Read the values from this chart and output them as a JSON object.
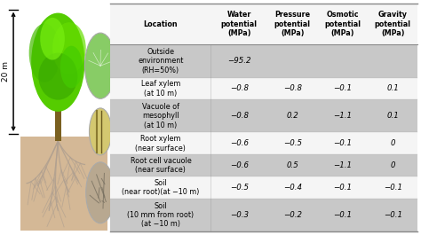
{
  "col_headers": [
    "Location",
    "Water\npotential\n(MPa)",
    "Pressure\npotential\n(MPa)",
    "Osmotic\npotential\n(MPa)",
    "Gravity\npotential\n(MPa)"
  ],
  "rows": [
    [
      "Outside\nenvironment\n(RH=50%)",
      "−95.2",
      "",
      "",
      ""
    ],
    [
      "Leaf xylem\n(at 10 m)",
      "−0.8",
      "−0.8",
      "−0.1",
      "0.1"
    ],
    [
      "Vacuole of\nmesophyll\n(at 10 m)",
      "−0.8",
      "0.2",
      "−1.1",
      "0.1"
    ],
    [
      "Root xylem\n(near surface)",
      "−0.6",
      "−0.5",
      "−0.1",
      "0"
    ],
    [
      "Root cell vacuole\n(near surface)",
      "−0.6",
      "0.5",
      "−1.1",
      "0"
    ],
    [
      "Soil\n(near root)(at −10 m)",
      "−0.5",
      "−0.4",
      "−0.1",
      "−0.1"
    ],
    [
      "Soil\n(10 mm from root)\n(at −10 m)",
      "−0.3",
      "−0.2",
      "−0.1",
      "−0.1"
    ]
  ],
  "shaded_rows": [
    0,
    2,
    4,
    6
  ],
  "shade_color": "#c8c8c8",
  "white_color": "#f5f5f5",
  "header_bg": "#f5f5f5",
  "line_color": "#888888",
  "text_color": "#000000",
  "figsize": [
    4.74,
    2.65
  ],
  "dpi": 100,
  "tree_bg": "#ffffff",
  "sky_color": "#ffffff",
  "soil_color": "#d4b896",
  "soil_dark": "#c4a882",
  "trunk_color": "#7a6020",
  "canopy_color": "#3aaa00",
  "root_color": "#b0a090",
  "arrow_color": "#000000"
}
